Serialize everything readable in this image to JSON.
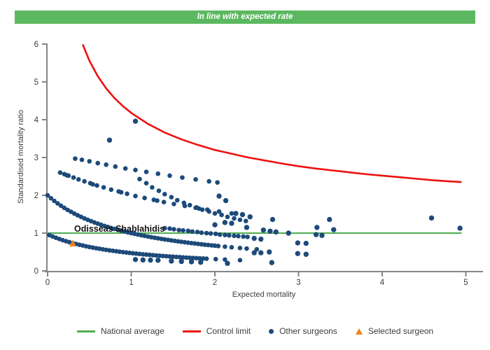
{
  "banner": {
    "text": "In line with expected rate",
    "bg": "#5cb860",
    "fg": "#ffffff"
  },
  "annotation": {
    "selected_surgeon_name": "Odisseas Shablahidis"
  },
  "legend": {
    "items": [
      {
        "label": "National average",
        "swatch": "green-line"
      },
      {
        "label": "Control limit",
        "swatch": "red-line"
      },
      {
        "label": "Other surgeons",
        "swatch": "navy-dot"
      },
      {
        "label": "Selected surgeon",
        "swatch": "orange-triangle"
      }
    ]
  },
  "colors": {
    "banner_green": "#5cb860",
    "national_average_green": "#4fae50",
    "control_limit_red": "#ee1111",
    "surgeon_navy": "#1d4a7a",
    "selected_orange": "#f08222",
    "axis_gray": "#858585",
    "tick_text": "#3d3d3d"
  },
  "chart_data": {
    "type": "scatter",
    "title": "In line with expected rate",
    "xlabel": "Expected mortality",
    "ylabel": "Standardised mortality ratio",
    "xlim": [
      0,
      5
    ],
    "ylim": [
      0,
      6
    ],
    "x_ticks": [
      0,
      1,
      2,
      3,
      4,
      5
    ],
    "y_ticks": [
      0,
      1,
      2,
      3,
      4,
      5,
      6
    ],
    "grid": false,
    "legend_position": "bottom",
    "series": [
      {
        "name": "National average",
        "type": "line",
        "color": "#4fae50",
        "points": [
          [
            0,
            1
          ],
          [
            4.95,
            1
          ]
        ]
      },
      {
        "name": "Control limit",
        "type": "line",
        "color": "#ee1111",
        "points": [
          [
            0.42,
            5.99
          ],
          [
            0.5,
            5.56
          ],
          [
            0.6,
            5.15
          ],
          [
            0.7,
            4.83
          ],
          [
            0.8,
            4.57
          ],
          [
            0.9,
            4.36
          ],
          [
            1.0,
            4.18
          ],
          [
            1.2,
            3.89
          ],
          [
            1.4,
            3.66
          ],
          [
            1.6,
            3.48
          ],
          [
            1.8,
            3.33
          ],
          [
            2.0,
            3.2
          ],
          [
            2.2,
            3.1
          ],
          [
            2.4,
            3.0
          ],
          [
            2.6,
            2.92
          ],
          [
            2.8,
            2.84
          ],
          [
            3.0,
            2.77
          ],
          [
            3.2,
            2.71
          ],
          [
            3.4,
            2.66
          ],
          [
            3.6,
            2.61
          ],
          [
            3.8,
            2.56
          ],
          [
            4.0,
            2.52
          ],
          [
            4.2,
            2.48
          ],
          [
            4.4,
            2.44
          ],
          [
            4.6,
            2.4
          ],
          [
            4.8,
            2.37
          ],
          [
            4.95,
            2.35
          ]
        ]
      },
      {
        "name": "Other surgeons",
        "type": "scatter",
        "color": "#1d4a7a",
        "bands": {
          "band1": [
            [
              0.02,
              0.948
            ],
            [
              0.06,
              0.911
            ],
            [
              0.1,
              0.876
            ],
            [
              0.14,
              0.844
            ],
            [
              0.18,
              0.814
            ],
            [
              0.22,
              0.786
            ],
            [
              0.26,
              0.76
            ],
            [
              0.3,
              0.736
            ],
            [
              0.34,
              0.713
            ],
            [
              0.38,
              0.692
            ],
            [
              0.42,
              0.672
            ],
            [
              0.46,
              0.652
            ],
            [
              0.5,
              0.634
            ],
            [
              0.54,
              0.617
            ],
            [
              0.58,
              0.601
            ],
            [
              0.62,
              0.586
            ],
            [
              0.66,
              0.571
            ],
            [
              0.7,
              0.558
            ],
            [
              0.74,
              0.544
            ],
            [
              0.78,
              0.532
            ],
            [
              0.82,
              0.52
            ],
            [
              0.86,
              0.508
            ],
            [
              0.9,
              0.497
            ],
            [
              0.94,
              0.487
            ],
            [
              0.98,
              0.477
            ],
            [
              1.02,
              0.467
            ],
            [
              1.06,
              0.458
            ],
            [
              1.1,
              0.449
            ],
            [
              1.14,
              0.44
            ],
            [
              1.18,
              0.432
            ],
            [
              1.22,
              0.424
            ],
            [
              1.26,
              0.416
            ],
            [
              1.3,
              0.409
            ],
            [
              1.34,
              0.402
            ],
            [
              1.38,
              0.395
            ],
            [
              1.42,
              0.388
            ],
            [
              1.46,
              0.382
            ],
            [
              1.5,
              0.376
            ],
            [
              1.54,
              0.369
            ],
            [
              1.58,
              0.364
            ],
            [
              1.62,
              0.358
            ],
            [
              1.66,
              0.352
            ],
            [
              1.7,
              0.347
            ],
            [
              1.74,
              0.342
            ],
            [
              1.78,
              0.337
            ],
            [
              1.82,
              0.332
            ],
            [
              1.86,
              0.327
            ],
            [
              1.9,
              0.323
            ],
            [
              2.01,
              0.311
            ],
            [
              2.12,
              0.3
            ],
            [
              2.3,
              0.283
            ]
          ],
          "band2": [
            [
              0.0,
              2.0
            ],
            [
              0.04,
              1.923
            ],
            [
              0.08,
              1.852
            ],
            [
              0.12,
              1.786
            ],
            [
              0.16,
              1.724
            ],
            [
              0.2,
              1.667
            ],
            [
              0.24,
              1.613
            ],
            [
              0.28,
              1.563
            ],
            [
              0.32,
              1.515
            ],
            [
              0.36,
              1.471
            ],
            [
              0.4,
              1.429
            ],
            [
              0.44,
              1.389
            ],
            [
              0.48,
              1.351
            ],
            [
              0.52,
              1.316
            ],
            [
              0.56,
              1.282
            ],
            [
              0.6,
              1.25
            ],
            [
              0.64,
              1.22
            ],
            [
              0.68,
              1.19
            ],
            [
              0.72,
              1.163
            ],
            [
              0.76,
              1.136
            ],
            [
              0.8,
              1.111
            ],
            [
              0.84,
              1.087
            ],
            [
              0.88,
              1.064
            ],
            [
              0.92,
              1.042
            ],
            [
              0.96,
              1.02
            ],
            [
              1.0,
              1.0
            ],
            [
              1.04,
              0.98
            ],
            [
              1.08,
              0.962
            ],
            [
              1.12,
              0.943
            ],
            [
              1.16,
              0.926
            ],
            [
              1.2,
              0.909
            ],
            [
              1.24,
              0.893
            ],
            [
              1.28,
              0.877
            ],
            [
              1.32,
              0.862
            ],
            [
              1.36,
              0.847
            ],
            [
              1.4,
              0.833
            ],
            [
              1.44,
              0.82
            ],
            [
              1.48,
              0.806
            ],
            [
              1.52,
              0.794
            ],
            [
              1.56,
              0.781
            ],
            [
              1.6,
              0.769
            ],
            [
              1.64,
              0.758
            ],
            [
              1.68,
              0.746
            ],
            [
              1.72,
              0.735
            ],
            [
              1.76,
              0.725
            ],
            [
              1.8,
              0.714
            ],
            [
              1.84,
              0.704
            ],
            [
              1.88,
              0.694
            ],
            [
              1.92,
              0.685
            ],
            [
              1.96,
              0.676
            ],
            [
              2.0,
              0.667
            ],
            [
              2.04,
              0.658
            ],
            [
              2.12,
              0.641
            ],
            [
              2.2,
              0.625
            ],
            [
              2.3,
              0.606
            ],
            [
              2.38,
              0.592
            ],
            [
              2.5,
              0.571
            ]
          ],
          "band3": [
            [
              0.15,
              2.6
            ],
            [
              0.2,
              2.56
            ],
            [
              0.23,
              2.53
            ],
            [
              0.25,
              2.52
            ],
            [
              0.31,
              2.47
            ],
            [
              0.37,
              2.42
            ],
            [
              0.44,
              2.37
            ],
            [
              0.51,
              2.32
            ],
            [
              0.54,
              2.29
            ],
            [
              0.59,
              2.26
            ],
            [
              0.67,
              2.21
            ],
            [
              0.76,
              2.15
            ],
            [
              0.85,
              2.1
            ],
            [
              0.88,
              2.08
            ],
            [
              0.95,
              2.04
            ],
            [
              1.05,
              1.98
            ],
            [
              1.16,
              1.93
            ],
            [
              1.27,
              1.88
            ],
            [
              1.31,
              1.86
            ],
            [
              1.39,
              1.82
            ],
            [
              1.51,
              1.77
            ],
            [
              1.64,
              1.72
            ],
            [
              1.77,
              1.67
            ],
            [
              1.81,
              1.65
            ],
            [
              1.91,
              1.62
            ],
            [
              2.05,
              1.57
            ],
            [
              2.2,
              1.52
            ],
            [
              2.33,
              1.48
            ]
          ],
          "band4": [
            [
              0.33,
              2.97
            ],
            [
              0.41,
              2.94
            ],
            [
              0.5,
              2.9
            ],
            [
              0.6,
              2.85
            ],
            [
              0.7,
              2.81
            ],
            [
              0.81,
              2.76
            ],
            [
              0.93,
              2.71
            ],
            [
              1.05,
              2.67
            ],
            [
              1.18,
              2.62
            ],
            [
              1.32,
              2.57
            ],
            [
              1.46,
              2.52
            ],
            [
              1.61,
              2.47
            ],
            [
              1.77,
              2.42
            ],
            [
              1.93,
              2.37
            ],
            [
              2.03,
              2.34
            ]
          ],
          "band5": [
            [
              1.1,
              2.43
            ],
            [
              1.18,
              2.32
            ],
            [
              1.25,
              2.21
            ],
            [
              1.33,
              2.12
            ],
            [
              1.4,
              2.03
            ],
            [
              1.48,
              1.95
            ],
            [
              1.55,
              1.87
            ],
            [
              1.63,
              1.8
            ],
            [
              1.7,
              1.74
            ],
            [
              1.78,
              1.68
            ],
            [
              1.85,
              1.62
            ],
            [
              1.93,
              1.57
            ],
            [
              2.0,
              1.52
            ],
            [
              2.08,
              1.48
            ],
            [
              2.15,
              1.43
            ],
            [
              2.23,
              1.39
            ],
            [
              2.3,
              1.35
            ],
            [
              2.37,
              1.32
            ]
          ],
          "band6": [
            [
              1.4,
              1.13
            ],
            [
              1.46,
              1.12
            ],
            [
              1.51,
              1.1
            ],
            [
              1.57,
              1.08
            ],
            [
              1.62,
              1.07
            ],
            [
              1.68,
              1.06
            ],
            [
              1.73,
              1.04
            ],
            [
              1.79,
              1.03
            ],
            [
              1.84,
              1.01
            ],
            [
              1.9,
              1.0
            ],
            [
              1.95,
              0.99
            ],
            [
              2.01,
              0.98
            ],
            [
              2.06,
              0.96
            ],
            [
              2.12,
              0.95
            ],
            [
              2.17,
              0.94
            ],
            [
              2.23,
              0.93
            ],
            [
              2.28,
              0.92
            ],
            [
              2.34,
              0.91
            ],
            [
              2.39,
              0.9
            ]
          ],
          "singles": [
            [
              0.74,
              3.46
            ],
            [
              1.05,
              3.96
            ],
            [
              2.05,
              1.98
            ],
            [
              2.13,
              1.86
            ],
            [
              2.25,
              1.52
            ],
            [
              2.33,
              1.49
            ],
            [
              2.42,
              1.43
            ],
            [
              2.0,
              1.22
            ],
            [
              2.12,
              1.28
            ],
            [
              2.2,
              1.26
            ],
            [
              2.38,
              1.15
            ],
            [
              2.69,
              1.36
            ],
            [
              3.22,
              1.15
            ],
            [
              3.37,
              1.36
            ],
            [
              3.42,
              1.09
            ],
            [
              2.58,
              1.08
            ],
            [
              2.66,
              1.05
            ],
            [
              2.73,
              1.03
            ],
            [
              2.88,
              1.0
            ],
            [
              3.21,
              0.96
            ],
            [
              3.28,
              0.94
            ],
            [
              2.47,
              0.86
            ],
            [
              2.55,
              0.84
            ],
            [
              2.99,
              0.74
            ],
            [
              3.09,
              0.73
            ],
            [
              2.47,
              0.48
            ],
            [
              2.55,
              0.48
            ],
            [
              2.65,
              0.5
            ],
            [
              2.99,
              0.46
            ],
            [
              3.09,
              0.44
            ],
            [
              2.68,
              0.22
            ],
            [
              1.05,
              0.3
            ],
            [
              1.14,
              0.29
            ],
            [
              1.23,
              0.285
            ],
            [
              1.32,
              0.28
            ],
            [
              1.48,
              0.26
            ],
            [
              1.6,
              0.25
            ],
            [
              1.72,
              0.24
            ],
            [
              1.83,
              0.23
            ],
            [
              2.15,
              0.2
            ],
            [
              4.59,
              1.4
            ],
            [
              4.93,
              1.13
            ]
          ]
        }
      },
      {
        "name": "Selected surgeon",
        "type": "scatter-triangle",
        "color": "#f08222",
        "points": [
          [
            0.3,
            0.72
          ]
        ],
        "label": "Odisseas Shablahidis"
      }
    ]
  }
}
